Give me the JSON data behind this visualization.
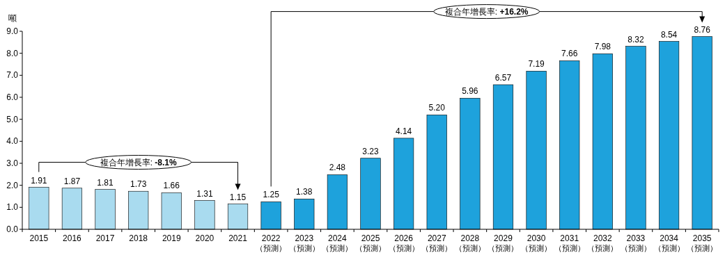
{
  "chart_data": {
    "type": "bar",
    "ylabel": "噸",
    "categories": [
      "2015",
      "2016",
      "2017",
      "2018",
      "2019",
      "2020",
      "2021",
      "2022\n（預測）",
      "2023\n（預測）",
      "2024\n（預測）",
      "2025\n（預測）",
      "2026\n（預測）",
      "2027\n（預測）",
      "2028\n（預測）",
      "2029\n（預測）",
      "2030\n（預測）",
      "2031\n（預測）",
      "2032\n（預測）",
      "2033\n（預測）",
      "2034\n（預測）",
      "2035\n（預測）"
    ],
    "values": [
      1.91,
      1.87,
      1.81,
      1.73,
      1.66,
      1.31,
      1.15,
      1.25,
      1.38,
      2.48,
      3.23,
      4.14,
      5.2,
      5.96,
      6.57,
      7.19,
      7.66,
      7.98,
      8.32,
      8.54,
      8.76
    ],
    "value_labels": [
      "1.91",
      "1.87",
      "1.81",
      "1.73",
      "1.66",
      "1.31",
      "1.15",
      "1.25",
      "1.38",
      "2.48",
      "3.23",
      "4.14",
      "5.20",
      "5.96",
      "6.57",
      "7.19",
      "7.66",
      "7.98",
      "8.32",
      "8.54",
      "8.76"
    ],
    "colors": [
      "#a9dbef",
      "#a9dbef",
      "#a9dbef",
      "#a9dbef",
      "#a9dbef",
      "#a9dbef",
      "#a9dbef",
      "#1ea2dc",
      "#1ea2dc",
      "#1ea2dc",
      "#1ea2dc",
      "#1ea2dc",
      "#1ea2dc",
      "#1ea2dc",
      "#1ea2dc",
      "#1ea2dc",
      "#1ea2dc",
      "#1ea2dc",
      "#1ea2dc",
      "#1ea2dc",
      "#1ea2dc"
    ],
    "ylim": [
      0,
      9
    ],
    "yticks": [
      {
        "value": 0,
        "label": "0.0"
      },
      {
        "value": 1,
        "label": "1.0"
      },
      {
        "value": 2,
        "label": "2.0"
      },
      {
        "value": 3,
        "label": "3.0"
      },
      {
        "value": 4,
        "label": "4.0"
      },
      {
        "value": 5,
        "label": "5.0"
      },
      {
        "value": 6,
        "label": "6.0"
      },
      {
        "value": 7,
        "label": "7.0"
      },
      {
        "value": 8,
        "label": "8.0"
      },
      {
        "value": 9,
        "label": "9.0"
      }
    ],
    "annotations": [
      "複合年增長率: -8.1%",
      "複合年增長率: +16.2%"
    ],
    "grid": false
  }
}
